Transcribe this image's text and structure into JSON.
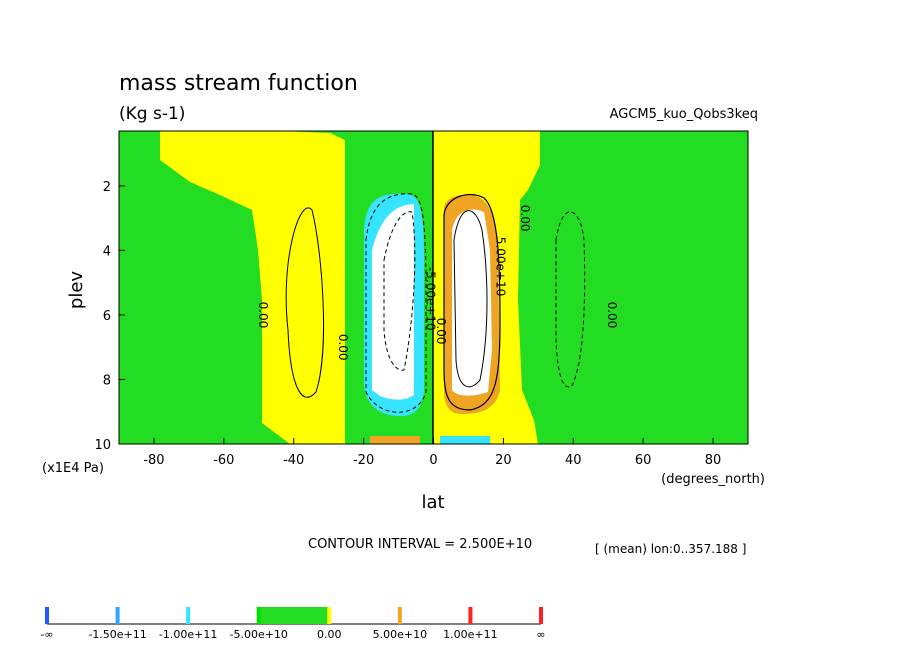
{
  "chart_data": {
    "type": "heatmap",
    "title": "mass stream function",
    "units": "(Kg s-1)",
    "dataset": "AGCM5_kuo_Qobs3keq",
    "xlabel": "lat",
    "xunits": "(degrees_north)",
    "ylabel": "plev",
    "yunits": "(x1E4 Pa)",
    "xlim": [
      -90,
      90
    ],
    "ylim": [
      10,
      0.3
    ],
    "x_ticks": [
      "-80",
      "-60",
      "-40",
      "-20",
      "0",
      "20",
      "40",
      "60",
      "80"
    ],
    "x_tick_values": [
      -80,
      -60,
      -40,
      -20,
      0,
      20,
      40,
      60,
      80
    ],
    "y_ticks": [
      "2",
      "4",
      "6",
      "8",
      "10"
    ],
    "y_tick_values": [
      2,
      4,
      6,
      8,
      10
    ],
    "contour_interval_text": "CONTOUR INTERVAL = 2.500E+10",
    "mean_text": "[ (mean) lon:0..357.188 ]",
    "contour_labels": [
      {
        "text": "0.00",
        "lat": -50,
        "plev": 6.0
      },
      {
        "text": "0.00",
        "lat": -27,
        "plev": 7.0
      },
      {
        "text": "-5.00e+10",
        "lat": -2,
        "plev": 5.5
      },
      {
        "text": "0.00",
        "lat": 1,
        "plev": 6.5
      },
      {
        "text": "5.00e+10",
        "lat": 18,
        "plev": 4.5
      },
      {
        "text": "0.00",
        "lat": 25,
        "plev": 3.0
      },
      {
        "text": "0.00",
        "lat": 50,
        "plev": 6.0
      }
    ],
    "cells": [
      {
        "value_class": "positive",
        "lat_range": [
          -65,
          -32
        ],
        "plev_range": [
          1.2,
          9.4
        ]
      },
      {
        "value_class": "zero",
        "lat_range": [
          -32,
          -26
        ],
        "plev_range": [
          1.5,
          9.5
        ]
      },
      {
        "value_class": "neg-min",
        "lat_range": [
          -18,
          -4
        ],
        "plev_range": [
          2.3,
          9.0
        ]
      },
      {
        "value_class": "neg-lt-5e10",
        "lat_range": [
          -20,
          -3
        ],
        "plev_range": [
          1.9,
          9.5
        ]
      },
      {
        "value_class": "zero",
        "lat_range": [
          -3,
          0
        ],
        "plev_range": [
          0.3,
          10
        ]
      },
      {
        "value_class": "pos-max",
        "lat_range": [
          4,
          17
        ],
        "plev_range": [
          2.3,
          9.2
        ]
      },
      {
        "value_class": "pos-gt-5e10",
        "lat_range": [
          4,
          20
        ],
        "plev_range": [
          1.9,
          9.5
        ]
      },
      {
        "value_class": "negative",
        "lat_range": [
          25,
          90
        ],
        "plev_range": [
          1.3,
          9.6
        ]
      }
    ],
    "colorbar": {
      "labels": [
        "-∞",
        "-1.50e+11",
        "-1.00e+11",
        "-5.00e+10",
        "0.00",
        "5.00e+10",
        "1.00e+11",
        "∞"
      ],
      "colors": [
        "#0000ff",
        "#0096ff",
        "#00e6ff",
        "#00ff00",
        "#ffff00",
        "#ffa500",
        "#ff0000"
      ],
      "level_colors": [
        "#1f5bff",
        "#2ea6ff",
        "#34e6ff",
        "#00e000",
        "#ffff00",
        "#f5a522",
        "#ff2020"
      ]
    },
    "colors": {
      "green": "#22dd22",
      "yellow": "#ffff00",
      "cyan": "#35e4ff",
      "orange": "#f0a424",
      "white": "#ffffff"
    }
  }
}
